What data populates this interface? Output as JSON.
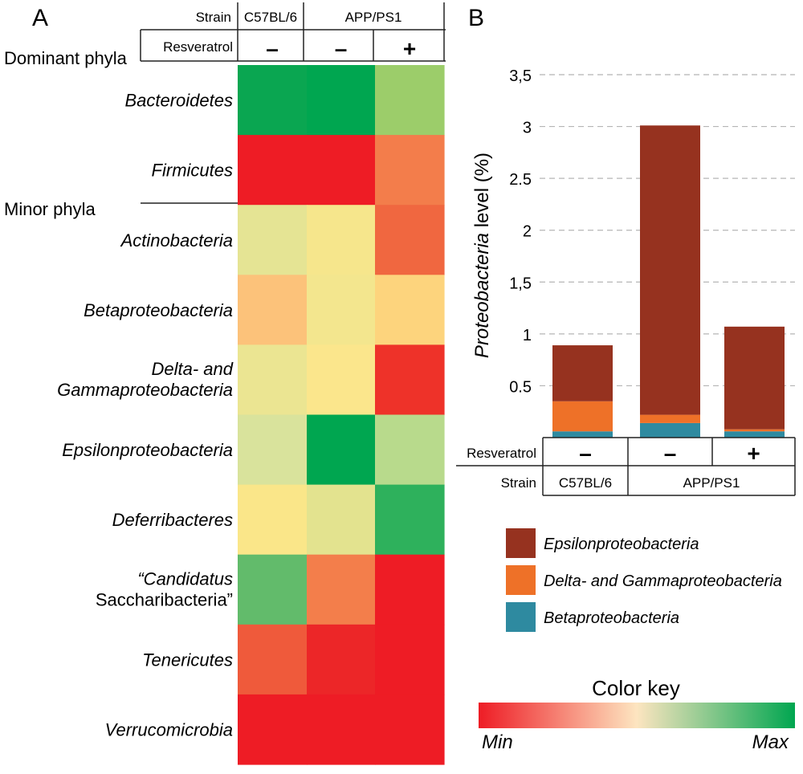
{
  "panel_a": {
    "label": "A",
    "strain_header": "Strain",
    "resveratrol_header": "Resveratrol",
    "group_dominant": "Dominant phyla",
    "group_minor": "Minor phyla"
  },
  "panel_b": {
    "label": "B",
    "ylabel_italic": "Proteobacteria",
    "ylabel_rest": " level (%)",
    "strain_header": "Strain",
    "resveratrol_header": "Resveratrol"
  },
  "color_key": {
    "title": "Color key",
    "min_label": "Min",
    "max_label": "Max",
    "gradient": [
      "#ee1c25",
      "#fde5c0",
      "#00a650"
    ]
  },
  "chart_data": [
    {
      "type": "heatmap",
      "columns": [
        {
          "strain": "C57BL/6",
          "resveratrol": "–"
        },
        {
          "strain": "APP/PS1",
          "resveratrol": "–"
        },
        {
          "strain": "APP/PS1",
          "resveratrol": "+"
        }
      ],
      "strains": [
        {
          "name": "C57BL/6",
          "span": 1
        },
        {
          "name": "APP/PS1",
          "span": 2
        }
      ],
      "rows": [
        {
          "label": "Bacteroidetes",
          "group": "Dominant phyla",
          "colors": [
            "#0aa651",
            "#00a650",
            "#9ccd6a"
          ]
        },
        {
          "label": "Firmicutes",
          "group": "Dominant phyla",
          "colors": [
            "#ee1c25",
            "#ee1c25",
            "#f37d4b"
          ]
        },
        {
          "label": "Actinobacteria",
          "group": "Minor phyla",
          "colors": [
            "#e5e494",
            "#f6e68c",
            "#f06740"
          ]
        },
        {
          "label": "Betaproteobacteria",
          "group": "Minor phyla",
          "colors": [
            "#fcc27a",
            "#f3e68e",
            "#fdd47d"
          ]
        },
        {
          "label": "Delta- and|Gammaproteobacteria",
          "group": "Minor phyla",
          "colors": [
            "#ebe592",
            "#fbe68c",
            "#ee3229"
          ]
        },
        {
          "label": "Epsilonproteobacteria",
          "group": "Minor phyla",
          "colors": [
            "#d9e39c",
            "#00a650",
            "#b8da8c"
          ]
        },
        {
          "label": "Deferribacteres",
          "group": "Minor phyla",
          "colors": [
            "#fae689",
            "#e3e38f",
            "#2eb15c"
          ]
        },
        {
          "label": "“Candidatus|Saccharibacteria”",
          "group": "Minor phyla",
          "colors": [
            "#62bb6b",
            "#f37e4b",
            "#ee1c25"
          ]
        },
        {
          "label": "Tenericutes",
          "group": "Minor phyla",
          "colors": [
            "#ef5a3b",
            "#ec2628",
            "#ee1c25"
          ]
        },
        {
          "label": "Verrucomicrobia",
          "group": "Minor phyla",
          "colors": [
            "#ee1c25",
            "#ee1c25",
            "#ee1c25"
          ]
        }
      ],
      "color_scale": {
        "min": "Min",
        "max": "Max"
      }
    },
    {
      "type": "bar",
      "stacked": true,
      "categories": [
        {
          "strain": "C57BL/6",
          "resveratrol": "–"
        },
        {
          "strain": "APP/PS1",
          "resveratrol": "–"
        },
        {
          "strain": "APP/PS1",
          "resveratrol": "+"
        }
      ],
      "strains": [
        {
          "name": "C57BL/6",
          "span": 1
        },
        {
          "name": "APP/PS1",
          "span": 2
        }
      ],
      "series": [
        {
          "name": "Betaproteobacteria",
          "color": "#2e8aa0",
          "values": [
            0.06,
            0.14,
            0.06
          ]
        },
        {
          "name": "Delta- and Gammaproteobacteria",
          "color": "#ee7128",
          "values": [
            0.29,
            0.08,
            0.02
          ]
        },
        {
          "name": "Epsilonproteobacteria",
          "color": "#96321f",
          "values": [
            0.54,
            2.79,
            0.99
          ]
        }
      ],
      "legend_order": [
        "Epsilonproteobacteria",
        "Delta- and Gammaproteobacteria",
        "Betaproteobacteria"
      ],
      "ylim": [
        0,
        3.5
      ],
      "yticks": [
        {
          "value": 0.5,
          "label": "0.5"
        },
        {
          "value": 1,
          "label": "1"
        },
        {
          "value": 1.5,
          "label": "1,5"
        },
        {
          "value": 2,
          "label": "2"
        },
        {
          "value": 2.5,
          "label": "2.5"
        },
        {
          "value": 3,
          "label": "3"
        },
        {
          "value": 3.5,
          "label": "3,5"
        }
      ],
      "grid": "dashed horizontal",
      "legend_position": "bottom"
    }
  ]
}
